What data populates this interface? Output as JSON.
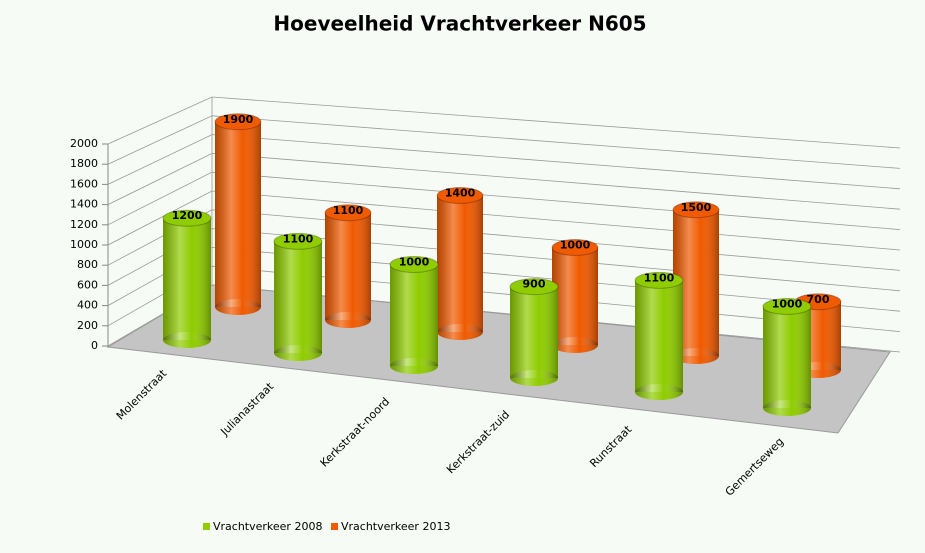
{
  "chart_data": {
    "type": "bar",
    "title": "Hoeveelheid Vrachtverkeer N605",
    "categories": [
      "Molenstraat",
      "Julianastraat",
      "Kerkstraat-noord",
      "Kerkstraat-zuid",
      "Runstraat",
      "Gemertseweg"
    ],
    "series": [
      {
        "name": "Vrachtverkeer 2008",
        "color": "#8fcc00",
        "values": [
          1200,
          1100,
          1000,
          900,
          1100,
          1000
        ]
      },
      {
        "name": "Vrachtverkeer 2013",
        "color": "#f05a00",
        "values": [
          1900,
          1100,
          1400,
          1000,
          1500,
          700
        ]
      }
    ],
    "ylim": [
      0,
      2000
    ],
    "yticks": [
      0,
      200,
      400,
      600,
      800,
      1000,
      1200,
      1400,
      1600,
      1800,
      2000
    ],
    "grid": true
  }
}
